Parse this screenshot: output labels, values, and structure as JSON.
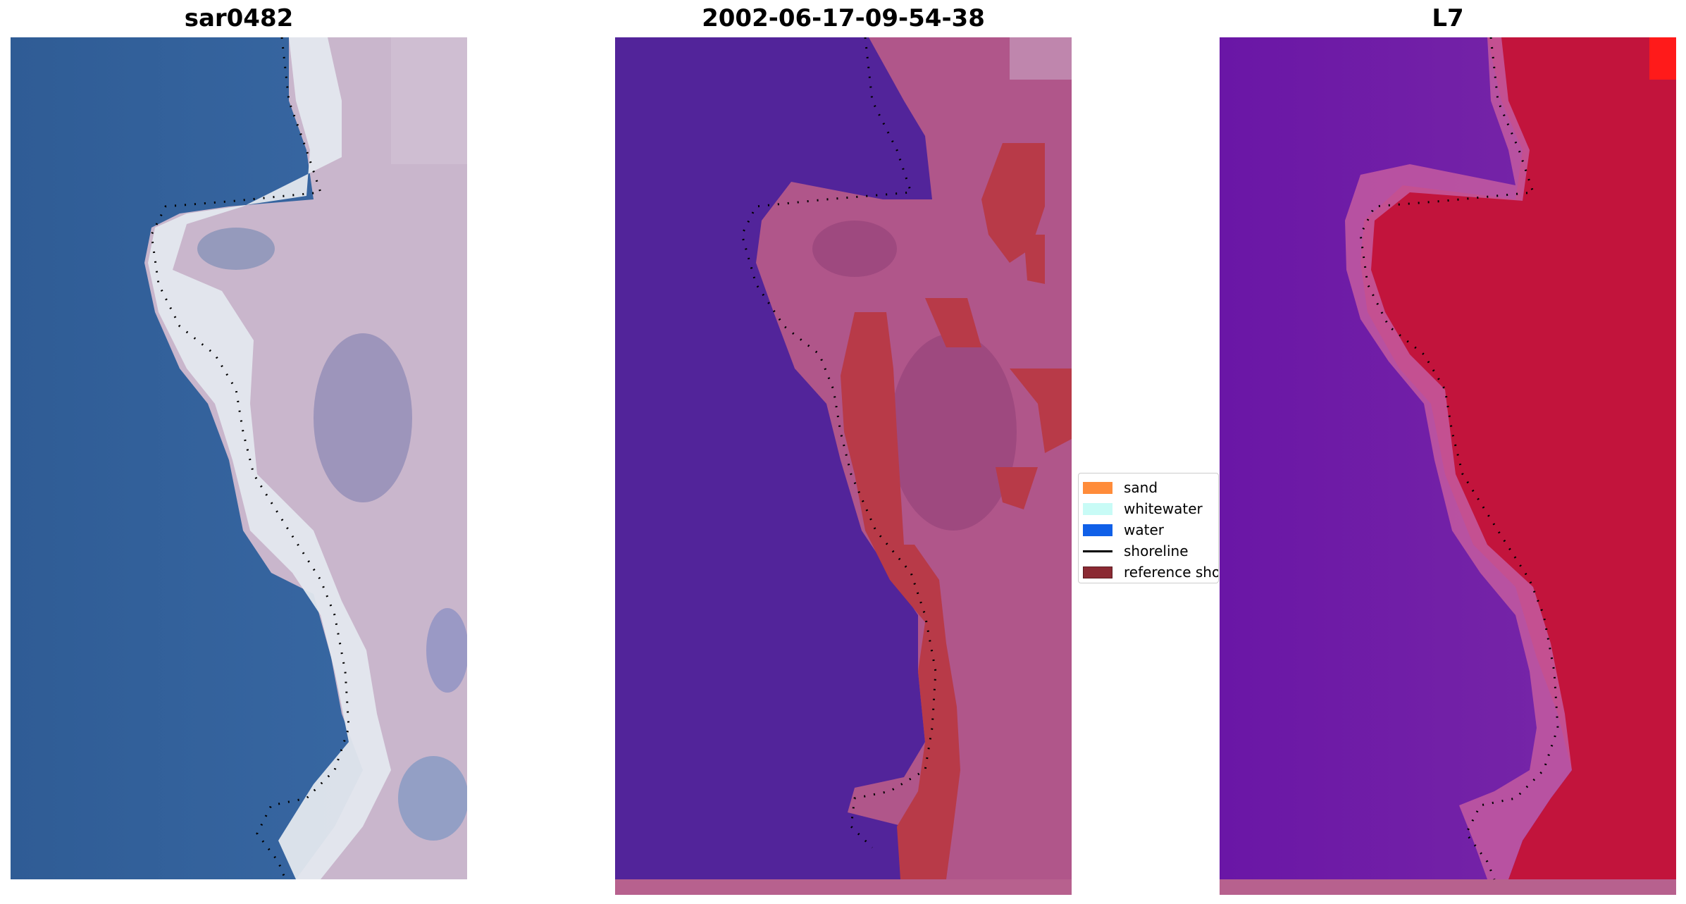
{
  "panels": [
    {
      "title": "sar0482"
    },
    {
      "title": "2002-06-17-09-54-38"
    },
    {
      "title": "L7"
    }
  ],
  "legend": {
    "items": [
      {
        "label": "sand",
        "kind": "patch",
        "color": "#ff8c3a"
      },
      {
        "label": "whitewater",
        "kind": "patch",
        "color": "#c8fbf6"
      },
      {
        "label": "water",
        "kind": "patch",
        "color": "#1060e8"
      },
      {
        "label": "shoreline",
        "kind": "line",
        "color": "#000000"
      },
      {
        "label": "reference shoreline",
        "kind": "patch",
        "color": "#8b2a33"
      }
    ]
  },
  "colors": {
    "rgb_water": "#2f5e9a",
    "rgb_surf": "#d8dde6",
    "rgb_land": "#c9b6c8",
    "class_water": "#52249a",
    "class_land": "#b0568a",
    "class_reference": "#b83a48",
    "ndwi_water": "#6c1aa5",
    "ndwi_land": "#c2143c"
  }
}
